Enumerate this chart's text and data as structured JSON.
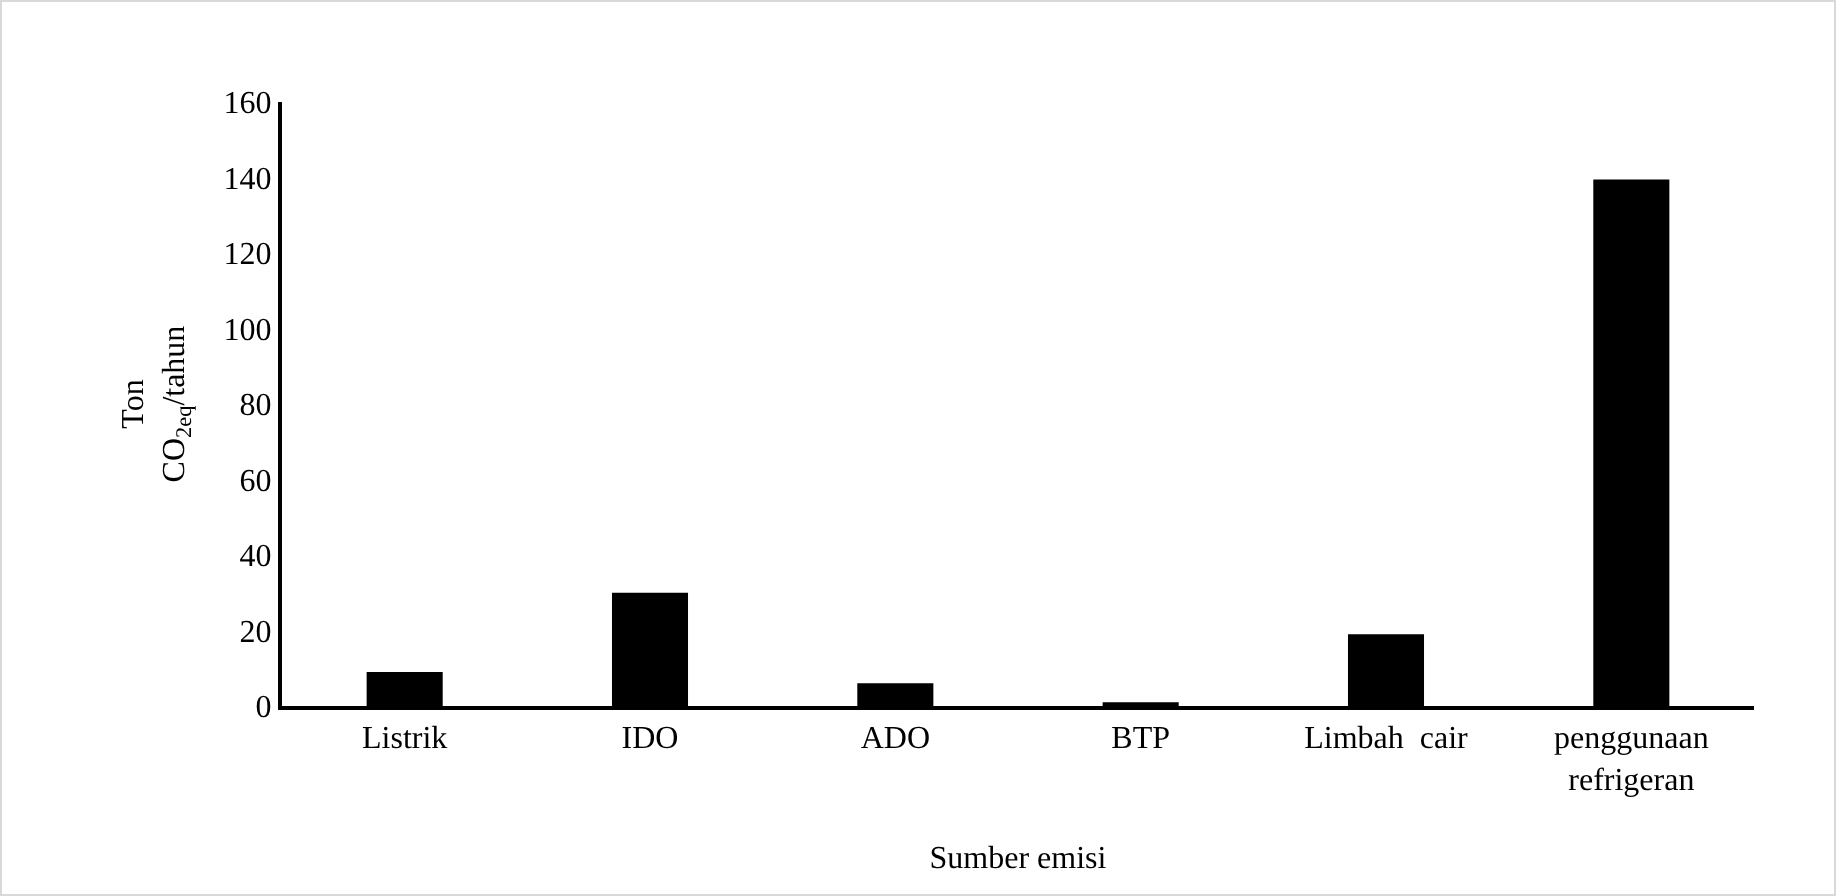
{
  "chart_data": {
    "type": "bar",
    "xlabel": "Sumber emisi",
    "ylabel": "Ton\nCO$_{2eq}$/tahun",
    "categories": [
      "Listrik",
      "IDO",
      "ADO",
      "BTP",
      "Limbah  cair",
      "penggunaan\nrefrigeran"
    ],
    "values": [
      9,
      30,
      6,
      1,
      19,
      139.5
    ],
    "color": "#000000",
    "ylim": [
      0,
      160
    ],
    "yticks": [
      0,
      20,
      40,
      60,
      80,
      100,
      120,
      140,
      160
    ],
    "grid": false,
    "legend": false
  }
}
